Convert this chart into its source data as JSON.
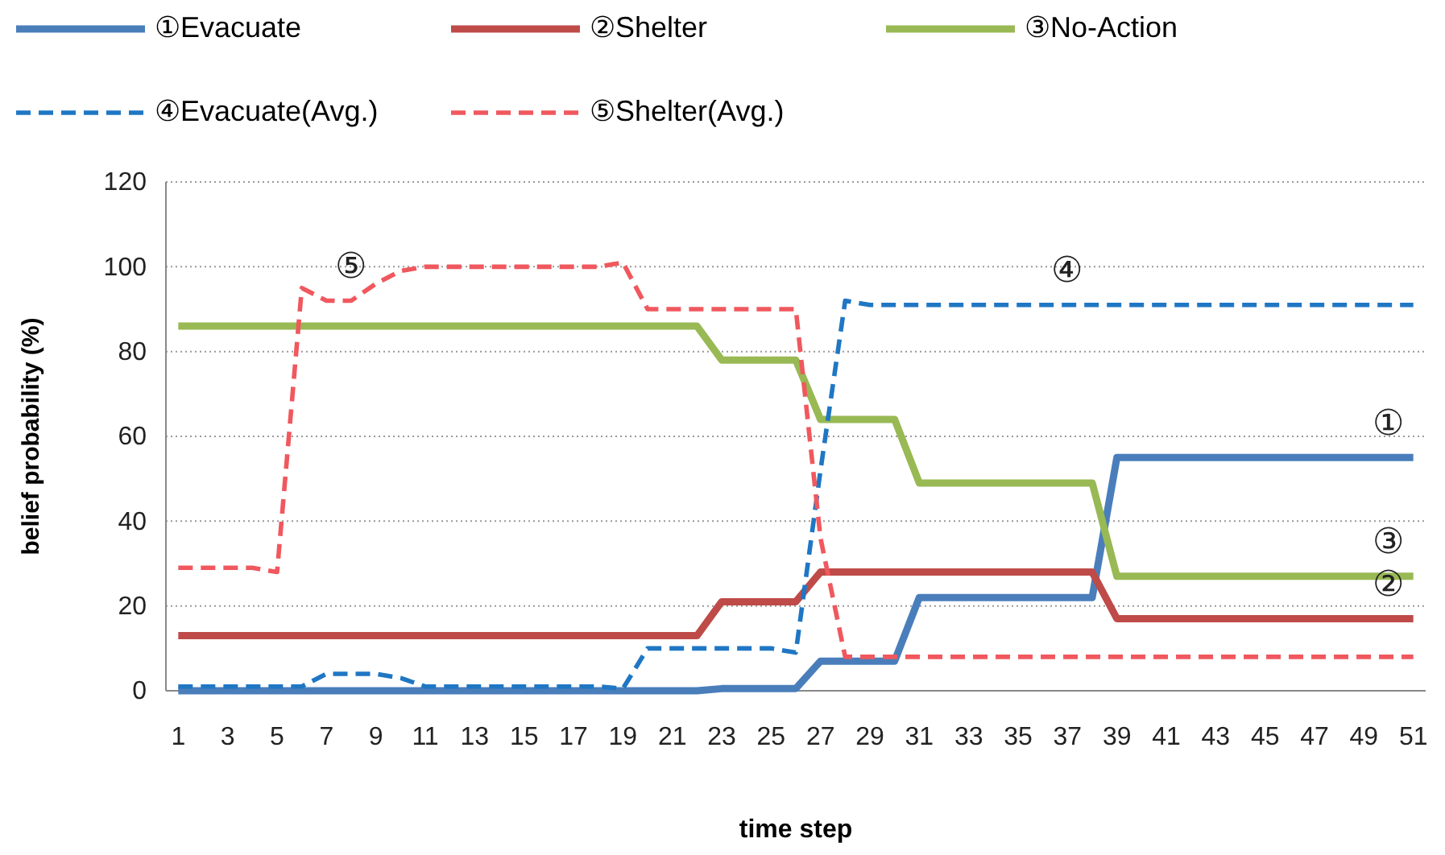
{
  "chart_data": {
    "type": "line",
    "xlabel": "time step",
    "ylabel": "belief probability (%)",
    "x": [
      1,
      2,
      3,
      4,
      5,
      6,
      7,
      8,
      9,
      10,
      11,
      12,
      13,
      14,
      15,
      16,
      17,
      18,
      19,
      20,
      21,
      22,
      23,
      24,
      25,
      26,
      27,
      28,
      29,
      30,
      31,
      32,
      33,
      34,
      35,
      36,
      37,
      38,
      39,
      40,
      41,
      42,
      43,
      44,
      45,
      46,
      47,
      48,
      49,
      50,
      51
    ],
    "xlim": [
      0.5,
      51.5
    ],
    "xticks": [
      1,
      3,
      5,
      7,
      9,
      11,
      13,
      15,
      17,
      19,
      21,
      23,
      25,
      27,
      29,
      31,
      33,
      35,
      37,
      39,
      41,
      43,
      45,
      47,
      49,
      51
    ],
    "ylim": [
      0,
      120
    ],
    "yticks": [
      0,
      20,
      40,
      60,
      80,
      100,
      120
    ],
    "grid": "y",
    "legend": "top",
    "series": [
      {
        "name": "①Evacuate",
        "color": "#4a7ebb",
        "line_style": "solid",
        "values": [
          0,
          0,
          0,
          0,
          0,
          0,
          0,
          0,
          0,
          0,
          0,
          0,
          0,
          0,
          0,
          0,
          0,
          0,
          0,
          0,
          0,
          0,
          0.5,
          0.5,
          0.5,
          0.5,
          7,
          7,
          7,
          7,
          22,
          22,
          22,
          22,
          22,
          22,
          22,
          22,
          55,
          55,
          55,
          55,
          55,
          55,
          55,
          55,
          55,
          55,
          55,
          55,
          55
        ]
      },
      {
        "name": "②Shelter",
        "color": "#be4b48",
        "line_style": "solid",
        "values": [
          13,
          13,
          13,
          13,
          13,
          13,
          13,
          13,
          13,
          13,
          13,
          13,
          13,
          13,
          13,
          13,
          13,
          13,
          13,
          13,
          13,
          13,
          21,
          21,
          21,
          21,
          28,
          28,
          28,
          28,
          28,
          28,
          28,
          28,
          28,
          28,
          28,
          28,
          17,
          17,
          17,
          17,
          17,
          17,
          17,
          17,
          17,
          17,
          17,
          17,
          17
        ]
      },
      {
        "name": "③No-Action",
        "color": "#98b954",
        "line_style": "solid",
        "values": [
          86,
          86,
          86,
          86,
          86,
          86,
          86,
          86,
          86,
          86,
          86,
          86,
          86,
          86,
          86,
          86,
          86,
          86,
          86,
          86,
          86,
          86,
          78,
          78,
          78,
          78,
          64,
          64,
          64,
          64,
          49,
          49,
          49,
          49,
          49,
          49,
          49,
          49,
          27,
          27,
          27,
          27,
          27,
          27,
          27,
          27,
          27,
          27,
          27,
          27,
          27
        ]
      },
      {
        "name": "④Evacuate(Avg.)",
        "color": "#1f77c4",
        "line_style": "dashed",
        "values": [
          1,
          1,
          1,
          1,
          1,
          1,
          4,
          4,
          4,
          3,
          1,
          1,
          1,
          1,
          1,
          1,
          1,
          1,
          0.5,
          10,
          10,
          10,
          10,
          10,
          10,
          9,
          52,
          92,
          91,
          91,
          91,
          91,
          91,
          91,
          91,
          91,
          91,
          91,
          91,
          91,
          91,
          91,
          91,
          91,
          91,
          91,
          91,
          91,
          91,
          91,
          91
        ]
      },
      {
        "name": "⑤Shelter(Avg.)",
        "color": "#f0585e",
        "line_style": "dashed",
        "values": [
          29,
          29,
          29,
          29,
          28,
          95,
          92,
          92,
          96,
          99,
          100,
          100,
          100,
          100,
          100,
          100,
          100,
          100,
          101,
          90,
          90,
          90,
          90,
          90,
          90,
          90,
          36,
          8,
          8,
          8,
          8,
          8,
          8,
          8,
          8,
          8,
          8,
          8,
          8,
          8,
          8,
          8,
          8,
          8,
          8,
          8,
          8,
          8,
          8,
          8,
          8
        ]
      }
    ],
    "annotations": [
      {
        "text": "⑤",
        "x": 8,
        "y": 92
      },
      {
        "text": "④",
        "x": 37,
        "y": 91
      },
      {
        "text": "①",
        "x": 50,
        "y": 55
      },
      {
        "text": "③",
        "x": 50,
        "y": 27
      },
      {
        "text": "②",
        "x": 50,
        "y": 17
      }
    ]
  }
}
